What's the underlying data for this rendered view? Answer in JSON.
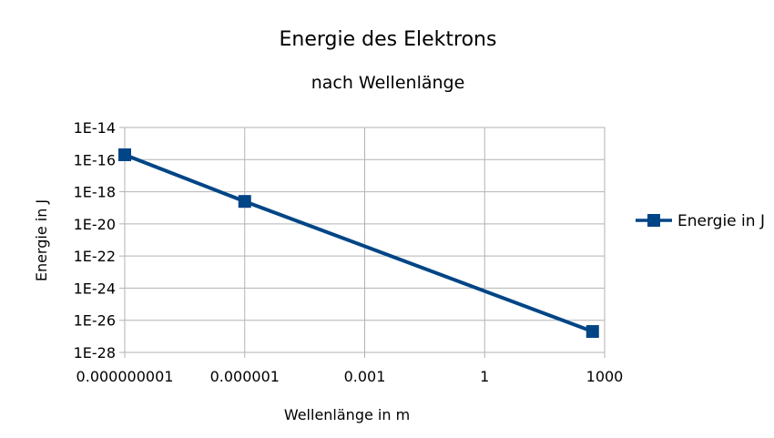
{
  "chart_data": {
    "type": "line",
    "title": "Energie des Elektrons",
    "subtitle": "nach Wellenlänge",
    "xlabel": "Wellenlänge in m",
    "ylabel": "Energie in J",
    "x_scale": "log",
    "y_scale": "log",
    "xlim": [
      1e-09,
      1000
    ],
    "ylim": [
      1e-28,
      1e-14
    ],
    "x_tick_labels": [
      "0.000000001",
      "0.000001",
      "0.001",
      "1",
      "1000"
    ],
    "y_tick_labels": [
      "1E-14",
      "1E-16",
      "1E-18",
      "1E-20",
      "1E-22",
      "1E-24",
      "1E-26",
      "1E-28"
    ],
    "grid": true,
    "legend_position": "right",
    "series": [
      {
        "name": "Energie in J",
        "color": "#004586",
        "marker": "square",
        "points": [
          {
            "x": 1e-09,
            "y": 2e-16
          },
          {
            "x": 1e-06,
            "y": 2.5e-19
          },
          {
            "x": 500,
            "y": 2e-27
          }
        ]
      }
    ]
  }
}
